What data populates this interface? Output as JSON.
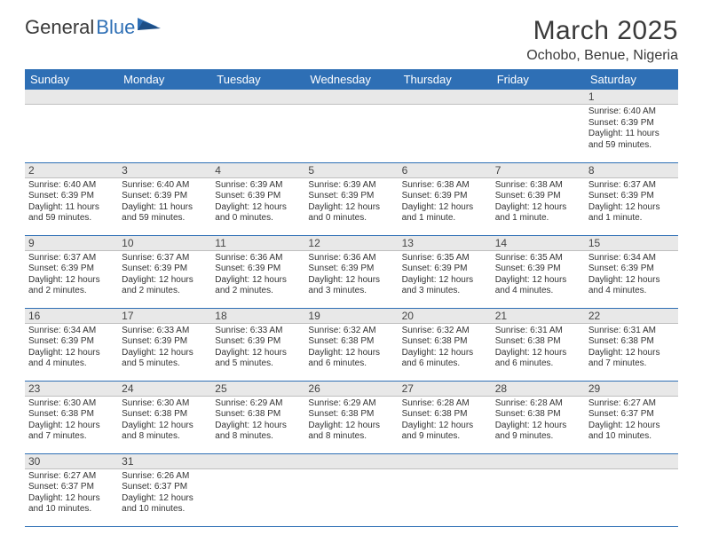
{
  "brand": {
    "name1": "General",
    "name2": "Blue"
  },
  "title": "March 2025",
  "location": "Ochobo, Benue, Nigeria",
  "weekdays": [
    "Sunday",
    "Monday",
    "Tuesday",
    "Wednesday",
    "Thursday",
    "Friday",
    "Saturday"
  ],
  "colors": {
    "header_bg": "#2e6fb5",
    "header_text": "#ffffff",
    "daynum_bg": "#e8e8e8",
    "row_border": "#2e6fb5",
    "text": "#333333"
  },
  "weeks": [
    [
      null,
      null,
      null,
      null,
      null,
      null,
      {
        "n": "1",
        "sunrise": "Sunrise: 6:40 AM",
        "sunset": "Sunset: 6:39 PM",
        "daylight": "Daylight: 11 hours and 59 minutes."
      }
    ],
    [
      {
        "n": "2",
        "sunrise": "Sunrise: 6:40 AM",
        "sunset": "Sunset: 6:39 PM",
        "daylight": "Daylight: 11 hours and 59 minutes."
      },
      {
        "n": "3",
        "sunrise": "Sunrise: 6:40 AM",
        "sunset": "Sunset: 6:39 PM",
        "daylight": "Daylight: 11 hours and 59 minutes."
      },
      {
        "n": "4",
        "sunrise": "Sunrise: 6:39 AM",
        "sunset": "Sunset: 6:39 PM",
        "daylight": "Daylight: 12 hours and 0 minutes."
      },
      {
        "n": "5",
        "sunrise": "Sunrise: 6:39 AM",
        "sunset": "Sunset: 6:39 PM",
        "daylight": "Daylight: 12 hours and 0 minutes."
      },
      {
        "n": "6",
        "sunrise": "Sunrise: 6:38 AM",
        "sunset": "Sunset: 6:39 PM",
        "daylight": "Daylight: 12 hours and 1 minute."
      },
      {
        "n": "7",
        "sunrise": "Sunrise: 6:38 AM",
        "sunset": "Sunset: 6:39 PM",
        "daylight": "Daylight: 12 hours and 1 minute."
      },
      {
        "n": "8",
        "sunrise": "Sunrise: 6:37 AM",
        "sunset": "Sunset: 6:39 PM",
        "daylight": "Daylight: 12 hours and 1 minute."
      }
    ],
    [
      {
        "n": "9",
        "sunrise": "Sunrise: 6:37 AM",
        "sunset": "Sunset: 6:39 PM",
        "daylight": "Daylight: 12 hours and 2 minutes."
      },
      {
        "n": "10",
        "sunrise": "Sunrise: 6:37 AM",
        "sunset": "Sunset: 6:39 PM",
        "daylight": "Daylight: 12 hours and 2 minutes."
      },
      {
        "n": "11",
        "sunrise": "Sunrise: 6:36 AM",
        "sunset": "Sunset: 6:39 PM",
        "daylight": "Daylight: 12 hours and 2 minutes."
      },
      {
        "n": "12",
        "sunrise": "Sunrise: 6:36 AM",
        "sunset": "Sunset: 6:39 PM",
        "daylight": "Daylight: 12 hours and 3 minutes."
      },
      {
        "n": "13",
        "sunrise": "Sunrise: 6:35 AM",
        "sunset": "Sunset: 6:39 PM",
        "daylight": "Daylight: 12 hours and 3 minutes."
      },
      {
        "n": "14",
        "sunrise": "Sunrise: 6:35 AM",
        "sunset": "Sunset: 6:39 PM",
        "daylight": "Daylight: 12 hours and 4 minutes."
      },
      {
        "n": "15",
        "sunrise": "Sunrise: 6:34 AM",
        "sunset": "Sunset: 6:39 PM",
        "daylight": "Daylight: 12 hours and 4 minutes."
      }
    ],
    [
      {
        "n": "16",
        "sunrise": "Sunrise: 6:34 AM",
        "sunset": "Sunset: 6:39 PM",
        "daylight": "Daylight: 12 hours and 4 minutes."
      },
      {
        "n": "17",
        "sunrise": "Sunrise: 6:33 AM",
        "sunset": "Sunset: 6:39 PM",
        "daylight": "Daylight: 12 hours and 5 minutes."
      },
      {
        "n": "18",
        "sunrise": "Sunrise: 6:33 AM",
        "sunset": "Sunset: 6:39 PM",
        "daylight": "Daylight: 12 hours and 5 minutes."
      },
      {
        "n": "19",
        "sunrise": "Sunrise: 6:32 AM",
        "sunset": "Sunset: 6:38 PM",
        "daylight": "Daylight: 12 hours and 6 minutes."
      },
      {
        "n": "20",
        "sunrise": "Sunrise: 6:32 AM",
        "sunset": "Sunset: 6:38 PM",
        "daylight": "Daylight: 12 hours and 6 minutes."
      },
      {
        "n": "21",
        "sunrise": "Sunrise: 6:31 AM",
        "sunset": "Sunset: 6:38 PM",
        "daylight": "Daylight: 12 hours and 6 minutes."
      },
      {
        "n": "22",
        "sunrise": "Sunrise: 6:31 AM",
        "sunset": "Sunset: 6:38 PM",
        "daylight": "Daylight: 12 hours and 7 minutes."
      }
    ],
    [
      {
        "n": "23",
        "sunrise": "Sunrise: 6:30 AM",
        "sunset": "Sunset: 6:38 PM",
        "daylight": "Daylight: 12 hours and 7 minutes."
      },
      {
        "n": "24",
        "sunrise": "Sunrise: 6:30 AM",
        "sunset": "Sunset: 6:38 PM",
        "daylight": "Daylight: 12 hours and 8 minutes."
      },
      {
        "n": "25",
        "sunrise": "Sunrise: 6:29 AM",
        "sunset": "Sunset: 6:38 PM",
        "daylight": "Daylight: 12 hours and 8 minutes."
      },
      {
        "n": "26",
        "sunrise": "Sunrise: 6:29 AM",
        "sunset": "Sunset: 6:38 PM",
        "daylight": "Daylight: 12 hours and 8 minutes."
      },
      {
        "n": "27",
        "sunrise": "Sunrise: 6:28 AM",
        "sunset": "Sunset: 6:38 PM",
        "daylight": "Daylight: 12 hours and 9 minutes."
      },
      {
        "n": "28",
        "sunrise": "Sunrise: 6:28 AM",
        "sunset": "Sunset: 6:38 PM",
        "daylight": "Daylight: 12 hours and 9 minutes."
      },
      {
        "n": "29",
        "sunrise": "Sunrise: 6:27 AM",
        "sunset": "Sunset: 6:37 PM",
        "daylight": "Daylight: 12 hours and 10 minutes."
      }
    ],
    [
      {
        "n": "30",
        "sunrise": "Sunrise: 6:27 AM",
        "sunset": "Sunset: 6:37 PM",
        "daylight": "Daylight: 12 hours and 10 minutes."
      },
      {
        "n": "31",
        "sunrise": "Sunrise: 6:26 AM",
        "sunset": "Sunset: 6:37 PM",
        "daylight": "Daylight: 12 hours and 10 minutes."
      },
      null,
      null,
      null,
      null,
      null
    ]
  ]
}
